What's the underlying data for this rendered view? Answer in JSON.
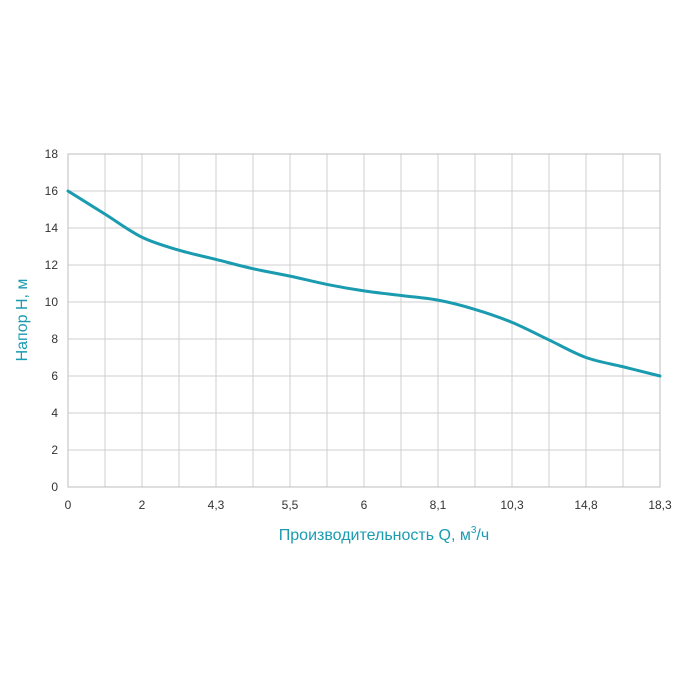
{
  "chart_data": {
    "type": "line",
    "title": "",
    "xlabel": "Производительность Q, м",
    "xlabel_sup": "3",
    "xlabel_suffix": "/ч",
    "ylabel": "Напор H, м",
    "x_tick_labels": [
      "0",
      "",
      "2",
      "",
      "4,3",
      "",
      "5,5",
      "",
      "6",
      "",
      "8,1",
      "",
      "10,3",
      "",
      "14,8",
      "",
      "18,3"
    ],
    "y_ticks": [
      0,
      2,
      4,
      6,
      8,
      10,
      12,
      14,
      16,
      18
    ],
    "ylim": [
      0,
      18
    ],
    "grid": true,
    "colors": {
      "line": "#1a9bb0",
      "grid": "#cfcfcf",
      "frame": "#bdbdbd",
      "axis_title": "#1a9bb0"
    },
    "series": [
      {
        "x_index": [
          0,
          1,
          2,
          3,
          4,
          5,
          6,
          7,
          8,
          9,
          10,
          11,
          12,
          13,
          14,
          15,
          16
        ],
        "values": [
          16.0,
          14.75,
          13.5,
          12.8,
          12.3,
          11.8,
          11.4,
          10.95,
          10.6,
          10.35,
          10.1,
          9.6,
          8.9,
          7.95,
          7.0,
          6.5,
          6.0
        ]
      }
    ]
  }
}
